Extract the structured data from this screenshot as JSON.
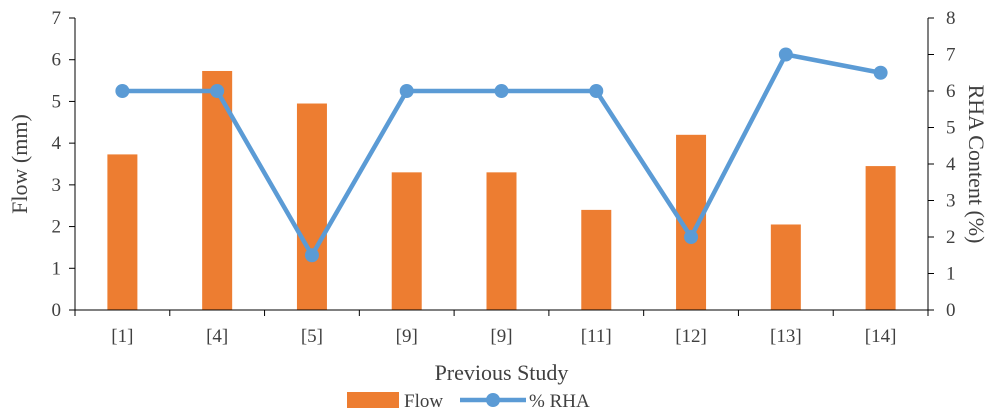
{
  "chart_data": {
    "type": "bar",
    "categories": [
      "[1]",
      "[4]",
      "[5]",
      "[9]",
      "[9]",
      "[11]",
      "[12]",
      "[13]",
      "[14]"
    ],
    "series": [
      {
        "name": "Flow",
        "kind": "bar",
        "axis": "left",
        "color": "#ED7D31",
        "values": [
          3.73,
          5.73,
          4.95,
          3.3,
          3.3,
          2.4,
          4.2,
          2.05,
          3.45
        ]
      },
      {
        "name": "% RHA",
        "kind": "line",
        "axis": "right",
        "color": "#5B9BD5",
        "values": [
          6,
          6,
          1.5,
          6,
          6,
          6,
          2,
          7,
          6.5
        ]
      }
    ],
    "xlabel": "Previous Study",
    "ylabel": "Flow (mm)",
    "y2label": "RHA Content (%)",
    "ylim": [
      0,
      7
    ],
    "y2lim": [
      0,
      8
    ],
    "yticks": [
      "0",
      "1",
      "2",
      "3",
      "4",
      "5",
      "6",
      "7"
    ],
    "y2ticks": [
      "0",
      "1",
      "2",
      "3",
      "4",
      "5",
      "6",
      "7",
      "8"
    ],
    "grid": false,
    "legend": "bottom-center"
  }
}
